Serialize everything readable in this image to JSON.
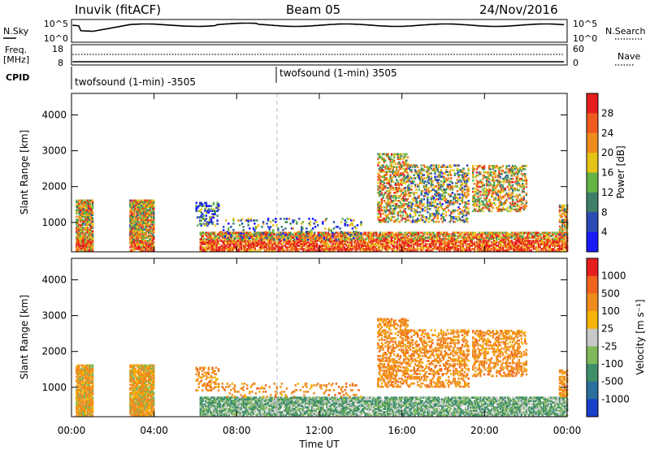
{
  "header": {
    "station": "Inuvik (fitACF)",
    "beam": "Beam 05",
    "date": "24/Nov/2016"
  },
  "top_panels": {
    "nsky": {
      "label": "N.Sky",
      "right_label": "N.Search",
      "left_ticks": [
        "10^5",
        "10^0"
      ],
      "right_ticks": [
        "10^5",
        "10^0"
      ]
    },
    "freq": {
      "label_line1": "Freq.",
      "label_line2": "[MHz]",
      "right_label": "Nave",
      "left_ticks": [
        "18",
        "8"
      ],
      "right_ticks": [
        "60",
        "0"
      ]
    },
    "cpid": {
      "label": "CPID",
      "segments": [
        {
          "text": "twofsound (1-min) -3505",
          "start_hour": 0.05
        },
        {
          "text": "twofsound (1-min) 3505",
          "start_hour": 10.0
        }
      ]
    }
  },
  "chart_data": [
    {
      "type": "heatmap",
      "name": "power",
      "ylabel": "Slant Range [km]",
      "colorbar_label": "Power [dB]",
      "colorbar_ticks": [
        "28",
        "24",
        "20",
        "16",
        "12",
        "8",
        "4"
      ],
      "colors": [
        "#1a1aff",
        "#2b4bb5",
        "#3f7f6a",
        "#64b446",
        "#e6c417",
        "#f08c1e",
        "#f05a1e",
        "#e61e1e"
      ],
      "xlim_hours": [
        0,
        24
      ],
      "ylim_km": [
        180,
        4600
      ],
      "yticks": [
        "4000",
        "3000",
        "2000",
        "1000"
      ],
      "yvalues": [
        4000,
        3000,
        2000,
        1000
      ]
    },
    {
      "type": "heatmap",
      "name": "velocity",
      "ylabel": "Slant Range [km]",
      "xlabel": "Time UT",
      "colorbar_label": "Velocity [m s⁻¹]",
      "colorbar_ticks": [
        "1000",
        "500",
        "100",
        "25",
        "-25",
        "-100",
        "-500",
        "-1000"
      ],
      "colors": [
        "#1a3fc8",
        "#2a6f9e",
        "#3f8f6a",
        "#7fb85a",
        "#c8c8c8",
        "#f4b400",
        "#f08c1e",
        "#f0641e",
        "#e61e1e"
      ],
      "xlim_hours": [
        0,
        24
      ],
      "ylim_km": [
        180,
        4600
      ],
      "yticks": [
        "4000",
        "3000",
        "2000",
        "1000"
      ],
      "yvalues": [
        4000,
        3000,
        2000,
        1000
      ],
      "xticks": [
        "00:00",
        "04:00",
        "08:00",
        "12:00",
        "16:00",
        "20:00",
        "00:00"
      ],
      "xvalues": [
        0,
        4,
        8,
        12,
        16,
        20,
        24
      ]
    }
  ]
}
